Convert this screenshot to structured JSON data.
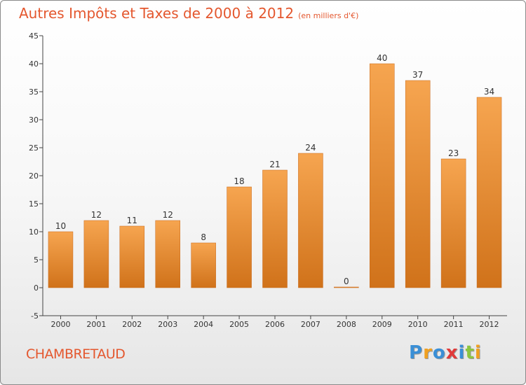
{
  "header": {
    "title": "Autres Impôts et Taxes de 2000 à 2012",
    "subtitle": "(en milliers d'€)"
  },
  "footer": {
    "town": "CHAMBRETAUD",
    "brand_letters": [
      {
        "char": "P",
        "color": "#3a8fd6"
      },
      {
        "char": "r",
        "color": "#f0a020"
      },
      {
        "char": "o",
        "color": "#3a8fd6"
      },
      {
        "char": "x",
        "color": "#e03a3a"
      },
      {
        "char": "i",
        "color": "#3a8fd6"
      },
      {
        "char": "t",
        "color": "#8cc63f"
      },
      {
        "char": "i",
        "color": "#f0a020"
      }
    ]
  },
  "chart_data": {
    "type": "bar",
    "title": "Autres Impôts et Taxes de 2000 à 2012",
    "subtitle": "(en milliers d'€)",
    "categories": [
      "2000",
      "2001",
      "2002",
      "2003",
      "2004",
      "2005",
      "2006",
      "2007",
      "2008",
      "2009",
      "2010",
      "2011",
      "2012"
    ],
    "values": [
      10,
      12,
      11,
      12,
      8,
      18,
      21,
      24,
      0,
      40,
      37,
      23,
      34
    ],
    "ylim": [
      -5,
      45
    ],
    "yticks": [
      -5,
      0,
      5,
      10,
      15,
      20,
      25,
      30,
      35,
      40,
      45
    ],
    "grid": false,
    "colors": {
      "bar_light": "#f6a550",
      "bar_dark": "#d0721a",
      "axis": "#444444"
    }
  }
}
